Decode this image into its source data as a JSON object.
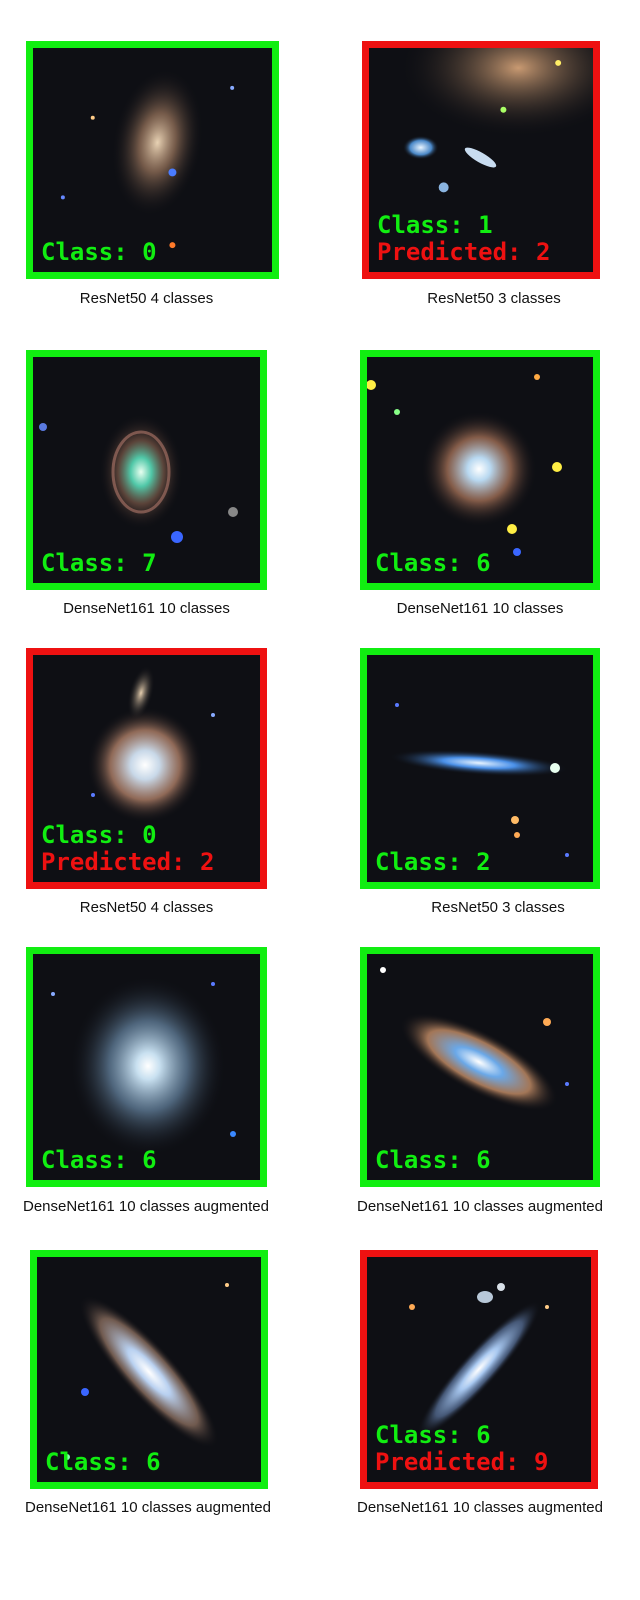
{
  "panels": [
    {
      "class_text": "Class: 0",
      "predicted_text": "",
      "caption": "ResNet50 4 classes",
      "correct": true
    },
    {
      "class_text": "Class: 1",
      "predicted_text": "Predicted: 2",
      "caption": "ResNet50 3 classes",
      "correct": false
    },
    {
      "class_text": "Class: 7",
      "predicted_text": "",
      "caption": "DenseNet161 10 classes",
      "correct": true
    },
    {
      "class_text": "Class: 6",
      "predicted_text": "",
      "caption": "DenseNet161 10 classes",
      "correct": true
    },
    {
      "class_text": "Class: 0",
      "predicted_text": "Predicted: 2",
      "caption": "ResNet50 4 classes",
      "correct": false
    },
    {
      "class_text": "Class: 2",
      "predicted_text": "",
      "caption": "ResNet50 3 classes",
      "correct": true
    },
    {
      "class_text": "Class: 6",
      "predicted_text": "",
      "caption": "DenseNet161 10 classes augmented",
      "correct": true
    },
    {
      "class_text": "Class: 6",
      "predicted_text": "",
      "caption": "DenseNet161 10 classes augmented",
      "correct": true
    },
    {
      "class_text": "Class: 6",
      "predicted_text": "",
      "caption": "DenseNet161 10 classes augmented",
      "correct": true
    },
    {
      "class_text": "Class: 6",
      "predicted_text": "Predicted: 9",
      "caption": "DenseNet161 10 classes augmented",
      "correct": false
    }
  ],
  "colors": {
    "correct_border": "#11ee11",
    "wrong_border": "#ee1111",
    "class_text": "#11ee11",
    "predicted_text": "#ee1111"
  }
}
